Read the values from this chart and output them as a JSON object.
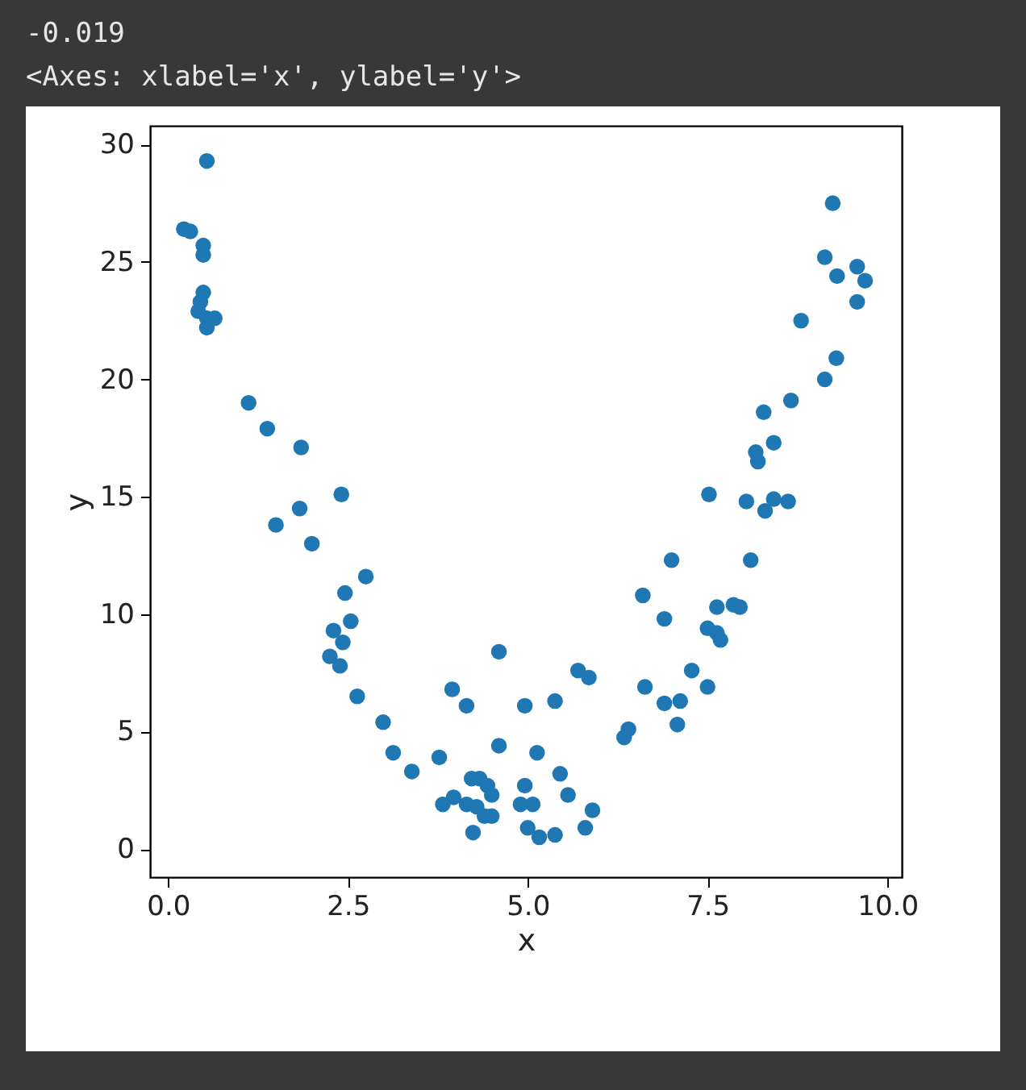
{
  "chart_data": {
    "type": "scatter",
    "xlabel": "x",
    "ylabel": "y",
    "annotations": [
      "-0.019",
      "<Axes: xlabel='x', ylabel='y'>"
    ],
    "xlim": [
      -0.25,
      10.2
    ],
    "ylim": [
      -1.2,
      30.8
    ],
    "xticks": [
      {
        "value": 0,
        "label": "0.0"
      },
      {
        "value": 2.5,
        "label": "2.5"
      },
      {
        "value": 5,
        "label": "5.0"
      },
      {
        "value": 7.5,
        "label": "7.5"
      },
      {
        "value": 10,
        "label": "10.0"
      }
    ],
    "yticks": [
      0,
      5,
      10,
      15,
      20,
      25,
      30
    ],
    "grid": false,
    "legend": false,
    "marker": "circle",
    "series": [
      {
        "color": "#1f77b4",
        "x": [
          0.54,
          0.22,
          0.31,
          0.49,
          0.49,
          0.49,
          0.45,
          0.42,
          0.54,
          0.65,
          0.54,
          1.12,
          1.38,
          1.85,
          2.41,
          1.83,
          1.5,
          2.0,
          2.75,
          2.46,
          2.54,
          2.3,
          2.43,
          2.25,
          2.39,
          2.63,
          2.99,
          3.13,
          3.39,
          3.77,
          3.95,
          4.15,
          4.6,
          4.6,
          3.82,
          3.97,
          4.22,
          4.33,
          4.44,
          4.5,
          4.15,
          4.29,
          4.4,
          4.5,
          4.24,
          4.96,
          5.38,
          5.13,
          5.45,
          5.56,
          5.9,
          5.8,
          4.96,
          4.9,
          5.07,
          5.0,
          5.16,
          5.38,
          5.7,
          5.85,
          6.34,
          6.4,
          6.63,
          6.6,
          6.9,
          7.0,
          6.9,
          7.12,
          7.08,
          7.28,
          7.5,
          7.5,
          7.63,
          7.68,
          7.63,
          7.86,
          7.95,
          8.1,
          7.52,
          8.04,
          8.42,
          8.62,
          8.3,
          8.17,
          8.2,
          8.42,
          8.28,
          8.66,
          9.13,
          9.29,
          8.8,
          9.58,
          9.58,
          9.3,
          9.69,
          9.13,
          9.24
        ],
        "values": [
          29.3,
          26.4,
          26.3,
          25.7,
          25.3,
          23.7,
          23.3,
          22.9,
          22.6,
          22.6,
          22.2,
          19.0,
          17.9,
          17.1,
          15.1,
          14.5,
          13.8,
          13.0,
          11.6,
          10.9,
          9.7,
          9.3,
          8.8,
          8.2,
          7.8,
          6.5,
          5.4,
          4.1,
          3.3,
          3.9,
          6.8,
          6.1,
          8.4,
          4.4,
          1.9,
          2.2,
          3.0,
          3.0,
          2.7,
          2.3,
          1.9,
          1.8,
          1.4,
          1.4,
          0.7,
          6.1,
          6.3,
          4.1,
          3.2,
          2.3,
          1.65,
          0.9,
          2.7,
          1.9,
          1.9,
          0.9,
          0.5,
          0.6,
          7.6,
          7.3,
          4.75,
          5.1,
          6.9,
          10.8,
          9.8,
          12.3,
          6.2,
          6.3,
          5.3,
          7.6,
          6.9,
          9.4,
          9.2,
          8.9,
          10.3,
          10.4,
          10.3,
          12.3,
          15.1,
          14.8,
          14.9,
          14.8,
          14.4,
          16.9,
          16.5,
          17.3,
          18.6,
          19.1,
          20.0,
          20.9,
          22.5,
          23.3,
          24.8,
          24.4,
          24.2,
          25.2,
          27.5
        ]
      }
    ]
  }
}
